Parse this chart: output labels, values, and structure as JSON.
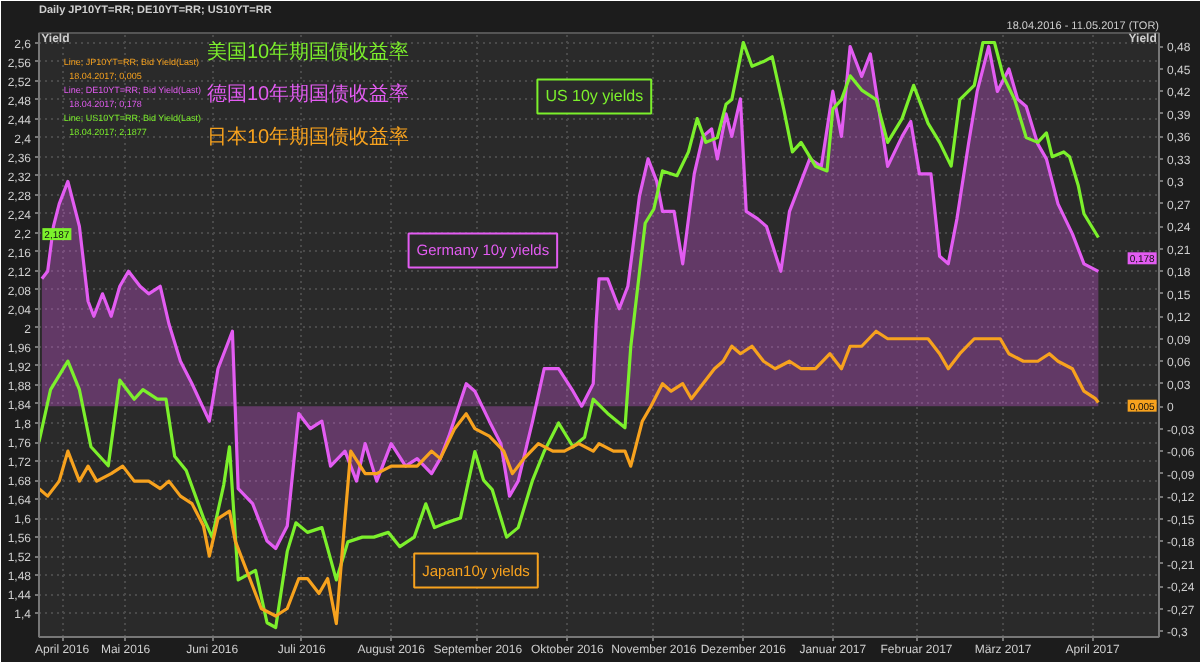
{
  "chart_data": {
    "type": "line",
    "title": "Daily JP10YT=RR; DE10YT=RR; US10YT=RR",
    "subtitle": "18.04.2016 - 11.05.2017 (TOR)",
    "ylabel": "Yield",
    "y2label": "Yield",
    "legend": "top left",
    "grid": true,
    "xlim": [
      "2016-04-16",
      "2017-05-09"
    ],
    "xticks": [
      {
        "value": "2016-04-24",
        "label": "April 2016"
      },
      {
        "value": "2016-05-16",
        "label": "Mai 2016"
      },
      {
        "value": "2016-06-15",
        "label": "Juni 2016"
      },
      {
        "value": "2016-07-16",
        "label": "Juli 2016"
      },
      {
        "value": "2016-08-16",
        "label": "August 2016"
      },
      {
        "value": "2016-09-15",
        "label": "September 2016"
      },
      {
        "value": "2016-10-16",
        "label": "Oktober 2016"
      },
      {
        "value": "2016-11-15",
        "label": "November 2016"
      },
      {
        "value": "2016-12-16",
        "label": "Dezember 2016"
      },
      {
        "value": "2017-01-16",
        "label": "Januar 2017"
      },
      {
        "value": "2017-02-14",
        "label": "Februar 2017"
      },
      {
        "value": "2017-03-16",
        "label": "März 2017"
      },
      {
        "value": "2017-04-16",
        "label": "April 2017"
      }
    ],
    "ylim": [
      1.35,
      2.62
    ],
    "yticks": [
      {
        "value": 1.4,
        "label": "1,4"
      },
      {
        "value": 1.44,
        "label": "1,44"
      },
      {
        "value": 1.48,
        "label": "1,48"
      },
      {
        "value": 1.52,
        "label": "1,52"
      },
      {
        "value": 1.56,
        "label": "1,56"
      },
      {
        "value": 1.6,
        "label": "1,6"
      },
      {
        "value": 1.64,
        "label": "1,64"
      },
      {
        "value": 1.68,
        "label": "1,68"
      },
      {
        "value": 1.72,
        "label": "1,72"
      },
      {
        "value": 1.76,
        "label": "1,76"
      },
      {
        "value": 1.8,
        "label": "1,8"
      },
      {
        "value": 1.84,
        "label": "1,84"
      },
      {
        "value": 1.88,
        "label": "1,88"
      },
      {
        "value": 1.92,
        "label": "1,92"
      },
      {
        "value": 1.96,
        "label": "1,96"
      },
      2,
      {
        "value": 2.04,
        "label": "2,04"
      },
      {
        "value": 2.08,
        "label": "2,08"
      },
      {
        "value": 2.12,
        "label": "2,12"
      },
      {
        "value": 2.16,
        "label": "2,16"
      },
      {
        "value": 2.2,
        "label": "2,2"
      },
      {
        "value": 2.24,
        "label": "2,24"
      },
      {
        "value": 2.28,
        "label": "2,28"
      },
      {
        "value": 2.32,
        "label": "2,32"
      },
      {
        "value": 2.36,
        "label": "2,36"
      },
      {
        "value": 2.4,
        "label": "2,4"
      },
      {
        "value": 2.44,
        "label": "2,44"
      },
      {
        "value": 2.48,
        "label": "2,48"
      },
      {
        "value": 2.52,
        "label": "2,52"
      },
      {
        "value": 2.56,
        "label": "2,56"
      },
      {
        "value": 2.6,
        "label": "2,6"
      }
    ],
    "y2lim": [
      -0.308,
      0.498
    ],
    "y2ticks": [
      {
        "value": -0.3,
        "label": "-0,3"
      },
      {
        "value": -0.27,
        "label": "-0,27"
      },
      {
        "value": -0.24,
        "label": "-0,24"
      },
      {
        "value": -0.21,
        "label": "-0,21"
      },
      {
        "value": -0.18,
        "label": "-0,18"
      },
      {
        "value": -0.15,
        "label": "-0,15"
      },
      {
        "value": -0.12,
        "label": "-0,12"
      },
      {
        "value": -0.09,
        "label": "-0,09"
      },
      {
        "value": -0.06,
        "label": "-0,06"
      },
      {
        "value": -0.03,
        "label": "-0,03"
      },
      0,
      {
        "value": 0.03,
        "label": "0,03"
      },
      {
        "value": 0.06,
        "label": "0,06"
      },
      {
        "value": 0.09,
        "label": "0,09"
      },
      {
        "value": 0.12,
        "label": "0,12"
      },
      {
        "value": 0.15,
        "label": "0,15"
      },
      {
        "value": 0.18,
        "label": "0,18"
      },
      {
        "value": 0.21,
        "label": "0,21"
      },
      {
        "value": 0.24,
        "label": "0,24"
      },
      {
        "value": 0.27,
        "label": "0,27"
      },
      {
        "value": 0.3,
        "label": "0,3"
      },
      {
        "value": 0.33,
        "label": "0,33"
      },
      {
        "value": 0.36,
        "label": "0,36"
      },
      {
        "value": 0.39,
        "label": "0,39"
      },
      {
        "value": 0.42,
        "label": "0,42"
      },
      {
        "value": 0.45,
        "label": "0,45"
      },
      {
        "value": 0.48,
        "label": "0,48"
      }
    ],
    "series": [
      {
        "name": "美国10年期国债收益率",
        "color": "#7cf02c",
        "axis": "y",
        "x": [
          "2016-04-16",
          "2016-04-20",
          "2016-04-26",
          "2016-04-30",
          "2016-05-04",
          "2016-05-10",
          "2016-05-14",
          "2016-05-19",
          "2016-05-22",
          "2016-05-27",
          "2016-05-30",
          "2016-06-02",
          "2016-06-06",
          "2016-06-12",
          "2016-06-15",
          "2016-06-19",
          "2016-06-21",
          "2016-06-24",
          "2016-06-30",
          "2016-07-04",
          "2016-07-07",
          "2016-07-11",
          "2016-07-14",
          "2016-07-18",
          "2016-07-23",
          "2016-07-28",
          "2016-08-01",
          "2016-08-06",
          "2016-08-10",
          "2016-08-15",
          "2016-08-19",
          "2016-08-24",
          "2016-08-28",
          "2016-08-31",
          "2016-09-04",
          "2016-09-09",
          "2016-09-14",
          "2016-09-17",
          "2016-09-20",
          "2016-09-25",
          "2016-09-29",
          "2016-10-04",
          "2016-10-08",
          "2016-10-13",
          "2016-10-18",
          "2016-10-22",
          "2016-10-25",
          "2016-10-30",
          "2016-11-05",
          "2016-11-07",
          "2016-11-12",
          "2016-11-15",
          "2016-11-18",
          "2016-11-23",
          "2016-11-27",
          "2016-11-30",
          "2016-12-03",
          "2016-12-07",
          "2016-12-10",
          "2016-12-12",
          "2016-12-16",
          "2016-12-19",
          "2016-12-23",
          "2016-12-26",
          "2016-12-30",
          "2017-01-02",
          "2017-01-05",
          "2017-01-10",
          "2017-01-14",
          "2017-01-16",
          "2017-01-19",
          "2017-01-22",
          "2017-01-26",
          "2017-01-31",
          "2017-02-04",
          "2017-02-09",
          "2017-02-13",
          "2017-02-18",
          "2017-02-22",
          "2017-02-26",
          "2017-03-01",
          "2017-03-06",
          "2017-03-09",
          "2017-03-13",
          "2017-03-16",
          "2017-03-20",
          "2017-03-24",
          "2017-03-28",
          "2017-03-31",
          "2017-04-02",
          "2017-04-06",
          "2017-04-08",
          "2017-04-11",
          "2017-04-13",
          "2017-04-17",
          "2017-04-18"
        ],
        "values": [
          1.76,
          1.87,
          1.93,
          1.87,
          1.75,
          1.71,
          1.89,
          1.85,
          1.87,
          1.85,
          1.85,
          1.73,
          1.7,
          1.6,
          1.56,
          1.67,
          1.75,
          1.47,
          1.49,
          1.38,
          1.37,
          1.53,
          1.59,
          1.57,
          1.58,
          1.47,
          1.55,
          1.56,
          1.56,
          1.57,
          1.54,
          1.56,
          1.63,
          1.58,
          1.59,
          1.6,
          1.74,
          1.68,
          1.66,
          1.56,
          1.58,
          1.68,
          1.74,
          1.8,
          1.75,
          1.77,
          1.85,
          1.82,
          1.79,
          1.96,
          2.22,
          2.25,
          2.33,
          2.32,
          2.37,
          2.44,
          2.39,
          2.4,
          2.47,
          2.48,
          2.6,
          2.55,
          2.56,
          2.57,
          2.46,
          2.37,
          2.39,
          2.34,
          2.33,
          2.46,
          2.48,
          2.53,
          2.5,
          2.48,
          2.39,
          2.44,
          2.51,
          2.43,
          2.39,
          2.34,
          2.48,
          2.51,
          2.6,
          2.6,
          2.53,
          2.48,
          2.4,
          2.39,
          2.41,
          2.36,
          2.37,
          2.36,
          2.3,
          2.24,
          2.2,
          2.19
        ]
      },
      {
        "name": "德国10年期国债收益率",
        "color": "#e35cf2",
        "type": "area",
        "axis": "y2",
        "x": [
          "2016-04-17",
          "2016-04-19",
          "2016-04-21",
          "2016-04-23",
          "2016-04-26",
          "2016-04-28",
          "2016-04-30",
          "2016-05-03",
          "2016-05-05",
          "2016-05-08",
          "2016-05-11",
          "2016-05-14",
          "2016-05-17",
          "2016-05-21",
          "2016-05-24",
          "2016-05-28",
          "2016-05-31",
          "2016-06-04",
          "2016-06-08",
          "2016-06-14",
          "2016-06-17",
          "2016-06-22",
          "2016-06-24",
          "2016-06-29",
          "2016-07-04",
          "2016-07-07",
          "2016-07-11",
          "2016-07-15",
          "2016-07-19",
          "2016-07-23",
          "2016-07-26",
          "2016-07-31",
          "2016-08-04",
          "2016-08-07",
          "2016-08-11",
          "2016-08-16",
          "2016-08-21",
          "2016-08-25",
          "2016-08-30",
          "2016-09-02",
          "2016-09-05",
          "2016-09-11",
          "2016-09-14",
          "2016-09-19",
          "2016-09-23",
          "2016-09-26",
          "2016-09-29",
          "2016-10-04",
          "2016-10-08",
          "2016-10-13",
          "2016-10-18",
          "2016-10-21",
          "2016-10-25",
          "2016-10-26",
          "2016-10-27",
          "2016-10-30",
          "2016-11-03",
          "2016-11-06",
          "2016-11-10",
          "2016-11-13",
          "2016-11-16",
          "2016-11-18",
          "2016-11-22",
          "2016-11-25",
          "2016-11-29",
          "2016-12-02",
          "2016-12-05",
          "2016-12-07",
          "2016-12-10",
          "2016-12-12",
          "2016-12-15",
          "2016-12-17",
          "2016-12-21",
          "2016-12-24",
          "2016-12-29",
          "2017-01-01",
          "2017-01-05",
          "2017-01-08",
          "2017-01-12",
          "2017-01-16",
          "2017-01-19",
          "2017-01-22",
          "2017-01-26",
          "2017-01-29",
          "2017-01-31",
          "2017-02-04",
          "2017-02-09",
          "2017-02-12",
          "2017-02-15",
          "2017-02-19",
          "2017-02-22",
          "2017-02-25",
          "2017-02-28",
          "2017-03-04",
          "2017-03-07",
          "2017-03-11",
          "2017-03-14",
          "2017-03-18",
          "2017-03-21",
          "2017-03-24",
          "2017-03-28",
          "2017-03-31",
          "2017-04-04",
          "2017-04-09",
          "2017-04-13",
          "2017-04-18"
        ],
        "values": [
          0.17,
          0.18,
          0.24,
          0.27,
          0.3,
          0.27,
          0.24,
          0.14,
          0.12,
          0.15,
          0.12,
          0.16,
          0.18,
          0.16,
          0.15,
          0.16,
          0.11,
          0.06,
          0.03,
          -0.02,
          0.05,
          0.1,
          -0.11,
          -0.13,
          -0.18,
          -0.19,
          -0.16,
          -0.01,
          -0.03,
          -0.02,
          -0.08,
          -0.06,
          -0.1,
          -0.05,
          -0.1,
          -0.05,
          -0.08,
          -0.07,
          -0.09,
          -0.07,
          -0.04,
          0.03,
          0.02,
          -0.02,
          -0.05,
          -0.12,
          -0.1,
          -0.02,
          0.05,
          0.05,
          0.02,
          0.0,
          0.03,
          0.11,
          0.17,
          0.17,
          0.13,
          0.16,
          0.28,
          0.33,
          0.3,
          0.26,
          0.26,
          0.19,
          0.31,
          0.36,
          0.37,
          0.33,
          0.39,
          0.36,
          0.41,
          0.26,
          0.25,
          0.24,
          0.18,
          0.26,
          0.3,
          0.33,
          0.32,
          0.42,
          0.36,
          0.48,
          0.44,
          0.47,
          0.42,
          0.32,
          0.36,
          0.38,
          0.31,
          0.31,
          0.2,
          0.19,
          0.25,
          0.35,
          0.42,
          0.48,
          0.42,
          0.45,
          0.41,
          0.4,
          0.35,
          0.33,
          0.27,
          0.23,
          0.19,
          0.18
        ]
      },
      {
        "name": "日本10年期国债收益率",
        "color": "#f7a21e",
        "axis": "y2",
        "x": [
          "2016-04-16",
          "2016-04-19",
          "2016-04-23",
          "2016-04-26",
          "2016-04-30",
          "2016-05-03",
          "2016-05-06",
          "2016-05-11",
          "2016-05-15",
          "2016-05-19",
          "2016-05-24",
          "2016-05-28",
          "2016-05-31",
          "2016-06-04",
          "2016-06-08",
          "2016-06-12",
          "2016-06-14",
          "2016-06-17",
          "2016-06-21",
          "2016-06-23",
          "2016-06-28",
          "2016-07-02",
          "2016-07-07",
          "2016-07-11",
          "2016-07-15",
          "2016-07-18",
          "2016-07-22",
          "2016-07-25",
          "2016-07-28",
          "2016-07-31",
          "2016-08-02",
          "2016-08-07",
          "2016-08-11",
          "2016-08-16",
          "2016-08-21",
          "2016-08-25",
          "2016-08-30",
          "2016-09-02",
          "2016-09-07",
          "2016-09-11",
          "2016-09-14",
          "2016-09-19",
          "2016-09-24",
          "2016-09-27",
          "2016-10-01",
          "2016-10-06",
          "2016-10-11",
          "2016-10-15",
          "2016-10-20",
          "2016-10-25",
          "2016-10-27",
          "2016-11-01",
          "2016-11-05",
          "2016-11-07",
          "2016-11-11",
          "2016-11-14",
          "2016-11-18",
          "2016-11-21",
          "2016-11-25",
          "2016-11-28",
          "2016-12-02",
          "2016-12-06",
          "2016-12-09",
          "2016-12-12",
          "2016-12-15",
          "2016-12-19",
          "2016-12-23",
          "2016-12-27",
          "2017-01-01",
          "2017-01-05",
          "2017-01-10",
          "2017-01-15",
          "2017-01-19",
          "2017-01-22",
          "2017-01-26",
          "2017-01-31",
          "2017-02-04",
          "2017-02-09",
          "2017-02-13",
          "2017-02-18",
          "2017-02-22",
          "2017-02-25",
          "2017-03-01",
          "2017-03-06",
          "2017-03-11",
          "2017-03-15",
          "2017-03-18",
          "2017-03-23",
          "2017-03-28",
          "2017-04-01",
          "2017-04-04",
          "2017-04-09",
          "2017-04-13",
          "2017-04-17",
          "2017-04-18"
        ],
        "values": [
          -0.11,
          -0.12,
          -0.1,
          -0.06,
          -0.1,
          -0.08,
          -0.1,
          -0.09,
          -0.08,
          -0.1,
          -0.1,
          -0.11,
          -0.1,
          -0.12,
          -0.13,
          -0.16,
          -0.2,
          -0.15,
          -0.14,
          -0.18,
          -0.23,
          -0.27,
          -0.28,
          -0.27,
          -0.23,
          -0.23,
          -0.25,
          -0.23,
          -0.29,
          -0.15,
          -0.06,
          -0.09,
          -0.09,
          -0.08,
          -0.08,
          -0.08,
          -0.06,
          -0.07,
          -0.03,
          -0.01,
          -0.03,
          -0.04,
          -0.06,
          -0.09,
          -0.07,
          -0.05,
          -0.06,
          -0.06,
          -0.05,
          -0.06,
          -0.05,
          -0.06,
          -0.06,
          -0.08,
          -0.02,
          0.0,
          0.03,
          0.02,
          0.03,
          0.01,
          0.03,
          0.05,
          0.06,
          0.08,
          0.07,
          0.08,
          0.06,
          0.05,
          0.06,
          0.05,
          0.05,
          0.07,
          0.05,
          0.08,
          0.08,
          0.1,
          0.09,
          0.09,
          0.09,
          0.09,
          0.07,
          0.05,
          0.07,
          0.09,
          0.09,
          0.09,
          0.07,
          0.06,
          0.06,
          0.07,
          0.06,
          0.05,
          0.02,
          0.01,
          0.005
        ]
      }
    ],
    "annotations": [
      "US 10y yields",
      "Germany 10y yields",
      "Japan10y yields",
      "Line; JP10YT=RR; Bid Yield(Last)",
      "18.04.2017; 0,005",
      "Line; DE10YT=RR; Bid Yield(Last)",
      "18.04.2017; 0,178",
      "Line; US10YT=RR; Bid Yield(Last)",
      "18.04.2017; 2,1877",
      "2,187",
      "0,178",
      "0,005"
    ]
  }
}
